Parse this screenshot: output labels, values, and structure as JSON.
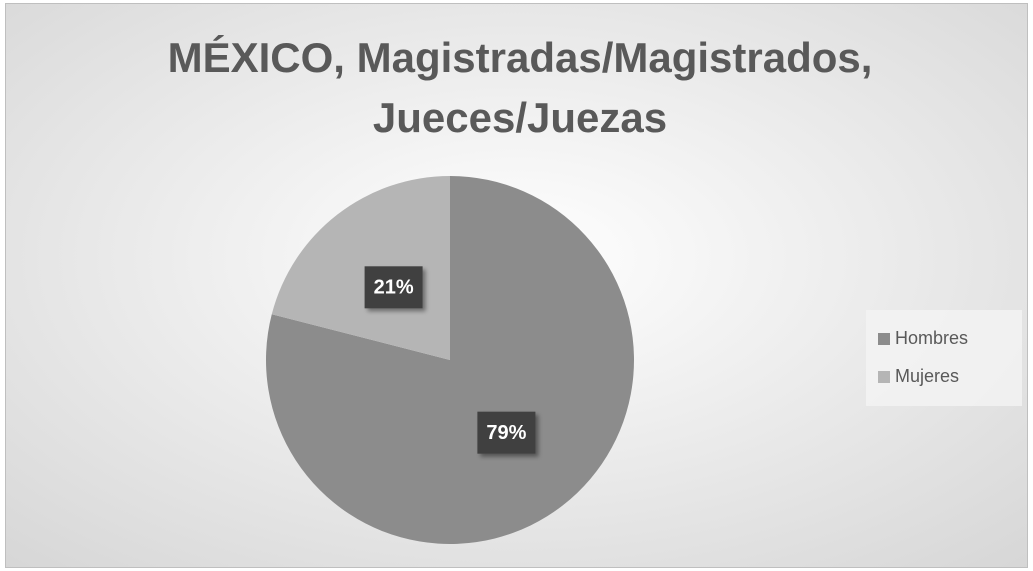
{
  "chart_data": {
    "type": "pie",
    "title": "MÉXICO, Magistradas/Magistrados, Jueces/Juezas",
    "categories": [
      "Hombres",
      "Mujeres"
    ],
    "values": [
      79,
      21
    ],
    "value_labels": [
      "79%",
      "21%"
    ],
    "colors": [
      "#8c8c8c",
      "#b5b5b5"
    ],
    "legend": "right"
  }
}
